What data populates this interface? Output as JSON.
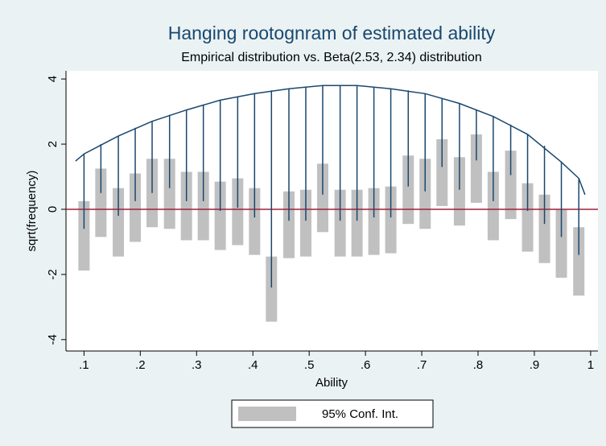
{
  "chart_data": {
    "type": "hanging-rootogram",
    "title": "Hanging rootognram of estimated ability",
    "subtitle": "Empirical distribution vs. Beta(2.53, 2.34) distribution",
    "x_label": "Ability",
    "y_label": "sqrt(frequency)",
    "x": [
      0.1,
      0.13,
      0.161,
      0.191,
      0.221,
      0.252,
      0.282,
      0.312,
      0.342,
      0.373,
      0.403,
      0.433,
      0.464,
      0.494,
      0.524,
      0.555,
      0.585,
      0.615,
      0.645,
      0.676,
      0.706,
      0.736,
      0.767,
      0.797,
      0.827,
      0.858,
      0.888,
      0.918,
      0.948,
      0.979
    ],
    "top": [
      1.7,
      2.0,
      2.25,
      2.5,
      2.7,
      2.9,
      3.05,
      3.2,
      3.35,
      3.45,
      3.55,
      3.65,
      3.7,
      3.75,
      3.8,
      3.8,
      3.8,
      3.75,
      3.7,
      3.65,
      3.55,
      3.4,
      3.25,
      3.05,
      2.85,
      2.6,
      2.3,
      1.95,
      1.45,
      0.95
    ],
    "bottom": [
      -0.6,
      0.5,
      -0.2,
      0.25,
      0.5,
      0.65,
      0.25,
      0.25,
      -0.05,
      0.05,
      -0.25,
      -2.4,
      -0.35,
      -0.35,
      0.45,
      -0.35,
      -0.35,
      -0.25,
      -0.25,
      0.7,
      0.55,
      1.3,
      0.6,
      1.5,
      0.25,
      1.05,
      -0.05,
      -0.45,
      -0.85,
      -1.4
    ],
    "ci_high": [
      0.25,
      1.25,
      0.65,
      1.1,
      1.55,
      1.55,
      1.15,
      1.15,
      0.85,
      0.95,
      0.65,
      -1.45,
      0.55,
      0.6,
      1.4,
      0.6,
      0.6,
      0.65,
      0.7,
      1.65,
      1.55,
      2.15,
      1.6,
      2.3,
      1.15,
      1.8,
      0.8,
      0.45,
      0.0,
      -0.55
    ],
    "ci_low": [
      -1.88,
      -0.85,
      -1.45,
      -1.0,
      -0.55,
      -0.6,
      -0.95,
      -0.95,
      -1.25,
      -1.1,
      -1.4,
      -3.45,
      -1.5,
      -1.45,
      -0.7,
      -1.45,
      -1.45,
      -1.4,
      -1.35,
      -0.45,
      -0.6,
      0.1,
      -0.5,
      0.2,
      -0.95,
      -0.3,
      -1.3,
      -1.65,
      -2.1,
      -2.65
    ],
    "curve": {
      "x": [
        0.085,
        0.1,
        0.161,
        0.221,
        0.282,
        0.342,
        0.403,
        0.464,
        0.524,
        0.585,
        0.645,
        0.706,
        0.767,
        0.827,
        0.888,
        0.948,
        0.979,
        0.99
      ],
      "values": [
        1.48,
        1.7,
        2.25,
        2.7,
        3.05,
        3.35,
        3.55,
        3.7,
        3.8,
        3.8,
        3.7,
        3.55,
        3.25,
        2.85,
        2.3,
        1.45,
        0.95,
        0.45
      ]
    },
    "line_color": "#1a476f",
    "ci_color": "#c0c0c0",
    "reference_line": 0,
    "reference_color": "#a0223c",
    "legend": [
      "95% Conf. Int."
    ],
    "legend_position": "bottom",
    "xlim": [
      0.068,
      1.013
    ],
    "ylim": [
      -4.35,
      4.25
    ],
    "xticks": [
      {
        "value": 0.1,
        "label": ".1"
      },
      {
        "value": 0.2,
        "label": ".2"
      },
      {
        "value": 0.3,
        "label": ".3"
      },
      {
        "value": 0.4,
        "label": ".4"
      },
      {
        "value": 0.5,
        "label": ".5"
      },
      {
        "value": 0.6,
        "label": ".6"
      },
      {
        "value": 0.7,
        "label": ".7"
      },
      {
        "value": 0.8,
        "label": ".8"
      },
      {
        "value": 0.9,
        "label": ".9"
      },
      1
    ],
    "yticks": [
      4,
      2,
      0,
      -2,
      -4
    ]
  }
}
